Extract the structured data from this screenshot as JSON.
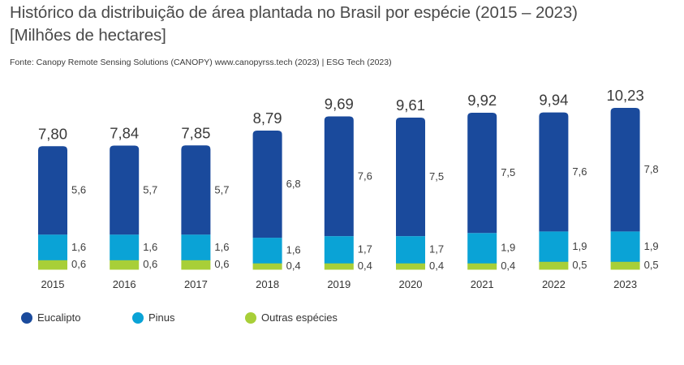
{
  "title": {
    "line1": "Histórico da distribuição de área plantada no Brasil por espécie (2015 – 2023)",
    "line2": "[Milhões de hectares]"
  },
  "source": "Fonte: Canopy Remote Sensing Solutions (CANOPY) www.canopyrss.tech (2023) | ESG Tech (2023)",
  "colors": {
    "eucalipto": "#1a4a9c",
    "pinus": "#0aa3d6",
    "outras": "#a8cf38",
    "text": "#3d3d3d"
  },
  "legend": [
    {
      "label": "Eucalipto",
      "color_key": "eucalipto"
    },
    {
      "label": "Pinus",
      "color_key": "pinus"
    },
    {
      "label": "Outras espécies",
      "color_key": "outras"
    }
  ],
  "chart_data": {
    "type": "bar",
    "stacked": true,
    "title": "Histórico da distribuição de área plantada no Brasil por espécie (2015 – 2023) [Milhões de hectares]",
    "categories": [
      "2015",
      "2016",
      "2017",
      "2018",
      "2019",
      "2020",
      "2021",
      "2022",
      "2023"
    ],
    "series": [
      {
        "name": "Outras espécies",
        "values": [
          0.6,
          0.6,
          0.6,
          0.4,
          0.4,
          0.4,
          0.4,
          0.5,
          0.5
        ],
        "labels": [
          "0,6",
          "0,6",
          "0,6",
          "0,4",
          "0,4",
          "0,4",
          "0,4",
          "0,5",
          "0,5"
        ]
      },
      {
        "name": "Pinus",
        "values": [
          1.6,
          1.6,
          1.6,
          1.6,
          1.7,
          1.7,
          1.9,
          1.9,
          1.9
        ],
        "labels": [
          "1,6",
          "1,6",
          "1,6",
          "1,6",
          "1,7",
          "1,7",
          "1,9",
          "1,9",
          "1,9"
        ]
      },
      {
        "name": "Eucalipto",
        "values": [
          5.6,
          5.7,
          5.7,
          6.8,
          7.6,
          7.5,
          7.5,
          7.6,
          7.8
        ],
        "labels": [
          "5,6",
          "5,7",
          "5,7",
          "6,8",
          "7,6",
          "7,5",
          "7,5",
          "7,6",
          "7,8"
        ]
      }
    ],
    "totals": [
      7.8,
      7.84,
      7.85,
      8.79,
      9.69,
      9.61,
      9.92,
      9.94,
      10.23
    ],
    "total_labels": [
      "7,80",
      "7,84",
      "7,85",
      "8,79",
      "9,69",
      "9,61",
      "9,92",
      "9,94",
      "10,23"
    ],
    "xlabel": "",
    "ylabel": "",
    "ylim": [
      0,
      10.23
    ],
    "grid": false,
    "legend_position": "bottom-left"
  }
}
